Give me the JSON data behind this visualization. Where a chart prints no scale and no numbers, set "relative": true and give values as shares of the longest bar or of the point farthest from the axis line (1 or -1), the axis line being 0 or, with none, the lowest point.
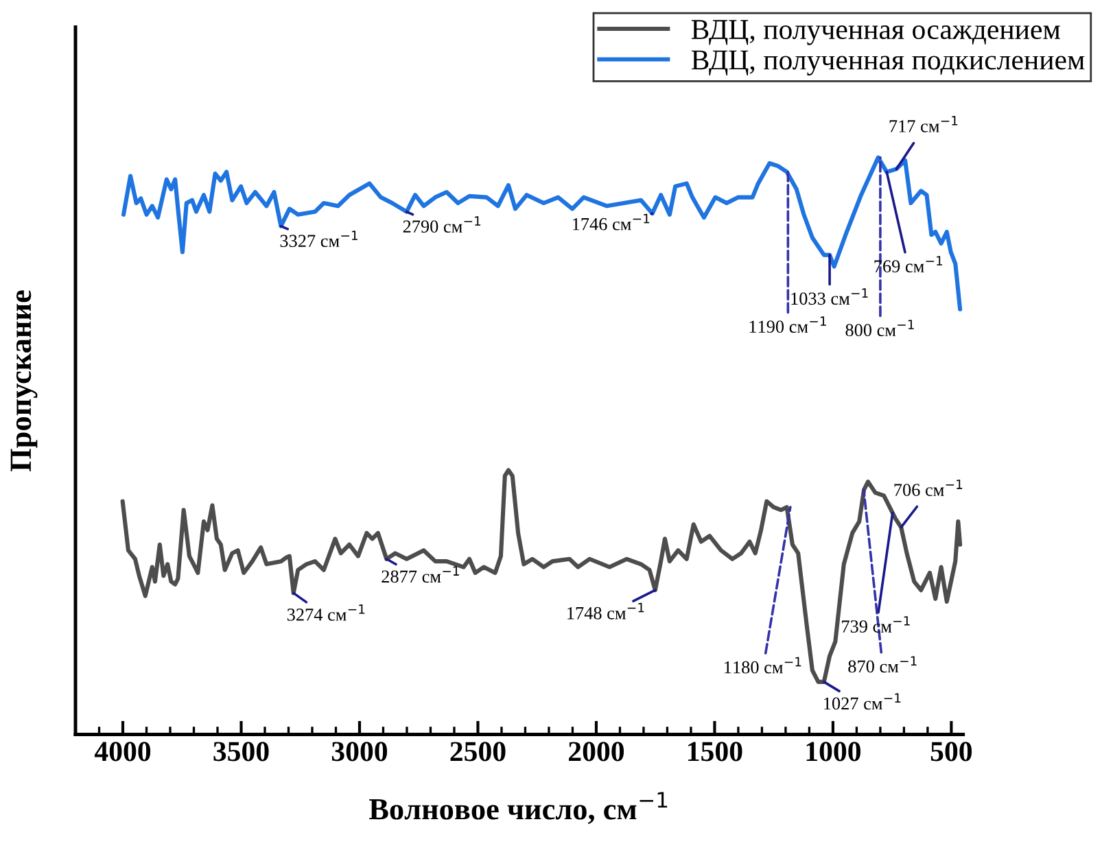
{
  "chart_data": {
    "type": "line",
    "xlabel": "Волновое число, см$^{−1}$",
    "ylabel": "Пропускание",
    "relative": true,
    "xlim": [
      4200,
      450
    ],
    "xticks": [
      4000,
      3500,
      3000,
      2500,
      2000,
      1500,
      1000,
      500
    ],
    "legend": "top right",
    "grid": false,
    "series": [
      {
        "name": "ВДЦ, полученная осаждением",
        "color": "#4d4d4d",
        "x": [
          4001,
          3977,
          3948,
          3931,
          3905,
          3876,
          3864,
          3844,
          3828,
          3811,
          3796,
          3779,
          3767,
          3743,
          3719,
          3695,
          3683,
          3658,
          3642,
          3622,
          3603,
          3586,
          3569,
          3538,
          3514,
          3489,
          3453,
          3417,
          3393,
          3332,
          3308,
          3296,
          3279,
          3260,
          3224,
          3188,
          3151,
          3103,
          3079,
          3043,
          3006,
          2970,
          2946,
          2922,
          2886,
          2849,
          2801,
          2729,
          2680,
          2632,
          2560,
          2536,
          2511,
          2475,
          2427,
          2403,
          2386,
          2371,
          2354,
          2330,
          2306,
          2270,
          2222,
          2185,
          2113,
          2077,
          2028,
          1944,
          1871,
          1811,
          1775,
          1751,
          1727,
          1710,
          1690,
          1654,
          1618,
          1589,
          1557,
          1521,
          1473,
          1425,
          1388,
          1352,
          1328,
          1304,
          1280,
          1251,
          1219,
          1195,
          1171,
          1147,
          1111,
          1087,
          1062,
          1038,
          1014,
          990,
          954,
          918,
          889,
          869,
          852,
          821,
          785,
          748,
          736,
          712,
          688,
          657,
          628,
          591,
          567,
          543,
          519,
          483,
          471,
          463
        ],
        "values": [
          0.404,
          0.319,
          0.304,
          0.275,
          0.24,
          0.29,
          0.265,
          0.329,
          0.275,
          0.295,
          0.265,
          0.26,
          0.27,
          0.389,
          0.309,
          0.29,
          0.28,
          0.369,
          0.354,
          0.397,
          0.339,
          0.329,
          0.285,
          0.314,
          0.319,
          0.28,
          0.3,
          0.324,
          0.295,
          0.3,
          0.307,
          0.309,
          0.245,
          0.285,
          0.295,
          0.3,
          0.285,
          0.339,
          0.314,
          0.329,
          0.309,
          0.349,
          0.339,
          0.349,
          0.304,
          0.314,
          0.304,
          0.319,
          0.3,
          0.3,
          0.29,
          0.304,
          0.28,
          0.29,
          0.28,
          0.309,
          0.448,
          0.458,
          0.448,
          0.349,
          0.295,
          0.304,
          0.29,
          0.3,
          0.304,
          0.29,
          0.304,
          0.29,
          0.304,
          0.295,
          0.285,
          0.25,
          0.3,
          0.339,
          0.3,
          0.319,
          0.304,
          0.364,
          0.334,
          0.344,
          0.319,
          0.304,
          0.314,
          0.334,
          0.314,
          0.354,
          0.404,
          0.394,
          0.389,
          0.394,
          0.329,
          0.314,
          0.19,
          0.111,
          0.091,
          0.091,
          0.136,
          0.161,
          0.295,
          0.349,
          0.369,
          0.424,
          0.438,
          0.419,
          0.414,
          0.384,
          0.374,
          0.359,
          0.314,
          0.265,
          0.25,
          0.28,
          0.235,
          0.29,
          0.23,
          0.3,
          0.369,
          0.329
        ]
      },
      {
        "name": "ВДЦ, полученная подкислением",
        "color": "#1f74e0",
        "x": [
          3997,
          3968,
          3943,
          3924,
          3900,
          3876,
          3852,
          3815,
          3796,
          3779,
          3767,
          3748,
          3731,
          3707,
          3690,
          3658,
          3634,
          3610,
          3586,
          3562,
          3538,
          3501,
          3477,
          3441,
          3393,
          3361,
          3332,
          3296,
          3260,
          3188,
          3151,
          3091,
          3043,
          2958,
          2910,
          2862,
          2801,
          2765,
          2729,
          2680,
          2632,
          2584,
          2536,
          2463,
          2415,
          2371,
          2342,
          2294,
          2222,
          2161,
          2101,
          2053,
          1956,
          1811,
          1763,
          1727,
          1690,
          1666,
          1618,
          1594,
          1545,
          1497,
          1449,
          1400,
          1340,
          1316,
          1268,
          1231,
          1195,
          1154,
          1123,
          1087,
          1038,
          1014,
          995,
          942,
          881,
          809,
          773,
          732,
          695,
          671,
          628,
          604,
          584,
          567,
          543,
          519,
          502,
          483,
          463
        ],
        "values": [
          0.901,
          0.968,
          0.921,
          0.929,
          0.901,
          0.916,
          0.896,
          0.962,
          0.945,
          0.962,
          0.911,
          0.836,
          0.921,
          0.926,
          0.906,
          0.935,
          0.906,
          0.972,
          0.96,
          0.975,
          0.926,
          0.95,
          0.921,
          0.94,
          0.916,
          0.94,
          0.881,
          0.911,
          0.901,
          0.906,
          0.921,
          0.916,
          0.935,
          0.955,
          0.931,
          0.921,
          0.906,
          0.935,
          0.916,
          0.931,
          0.94,
          0.921,
          0.933,
          0.931,
          0.916,
          0.952,
          0.911,
          0.935,
          0.921,
          0.931,
          0.911,
          0.931,
          0.916,
          0.926,
          0.903,
          0.935,
          0.901,
          0.95,
          0.955,
          0.931,
          0.896,
          0.931,
          0.921,
          0.931,
          0.931,
          0.955,
          0.99,
          0.985,
          0.975,
          0.945,
          0.901,
          0.861,
          0.831,
          0.831,
          0.811,
          0.871,
          0.935,
          1.0,
          0.975,
          0.98,
          0.995,
          0.921,
          0.942,
          0.935,
          0.866,
          0.871,
          0.851,
          0.871,
          0.836,
          0.816,
          0.737
        ]
      }
    ],
    "annotations": [
      {
        "text": "3327 см$^{−1}$",
        "x": 3332,
        "y": 0.881
      },
      {
        "text": "2790 см$^{−1}$",
        "x": 2801,
        "y": 0.906
      },
      {
        "text": "1746 см$^{−1}$",
        "x": 1763,
        "y": 0.903
      },
      {
        "text": "1190 см$^{−1}$",
        "x": 1190,
        "y": 0.975
      },
      {
        "text": "1033 см$^{−1}$",
        "x": 1014,
        "y": 0.831
      },
      {
        "text": "800 см$^{−1}$",
        "x": 800,
        "y": 1.0
      },
      {
        "text": "769 см$^{−1}$",
        "x": 773,
        "y": 0.975
      },
      {
        "text": "717 см$^{−1}$",
        "x": 732,
        "y": 0.98
      },
      {
        "text": "3274 см$^{−1}$",
        "x": 3279,
        "y": 0.245
      },
      {
        "text": "2877 см$^{−1}$",
        "x": 2886,
        "y": 0.304
      },
      {
        "text": "1748 см$^{−1}$",
        "x": 1751,
        "y": 0.25
      },
      {
        "text": "1180 см$^{−1}$",
        "x": 1180,
        "y": 0.394
      },
      {
        "text": "1027 см$^{−1}$",
        "x": 1038,
        "y": 0.091
      },
      {
        "text": "870 см$^{−1}$",
        "x": 870,
        "y": 0.424
      },
      {
        "text": "739 см$^{−1}$",
        "x": 748,
        "y": 0.384
      },
      {
        "text": "706 см$^{−1}$",
        "x": 712,
        "y": 0.359
      }
    ]
  }
}
